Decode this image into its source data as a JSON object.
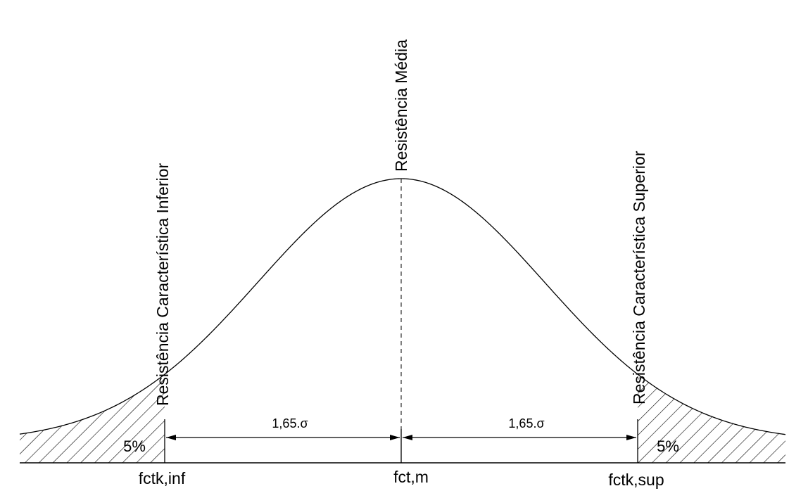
{
  "labels": {
    "lower": "Resistência Característica Inferior",
    "mean": "Resistência Média",
    "upper": "Resistência Característica Superior"
  },
  "bottom_labels": {
    "lower": "fctk,inf",
    "mean": "fct,m",
    "upper": "fctk,sup"
  },
  "dimensions": {
    "left": "1,65.σ",
    "right": "1,65.σ"
  },
  "tails": {
    "left": "5%",
    "right": "5%"
  },
  "colors": {
    "stroke": "#000000",
    "background": "#ffffff"
  }
}
